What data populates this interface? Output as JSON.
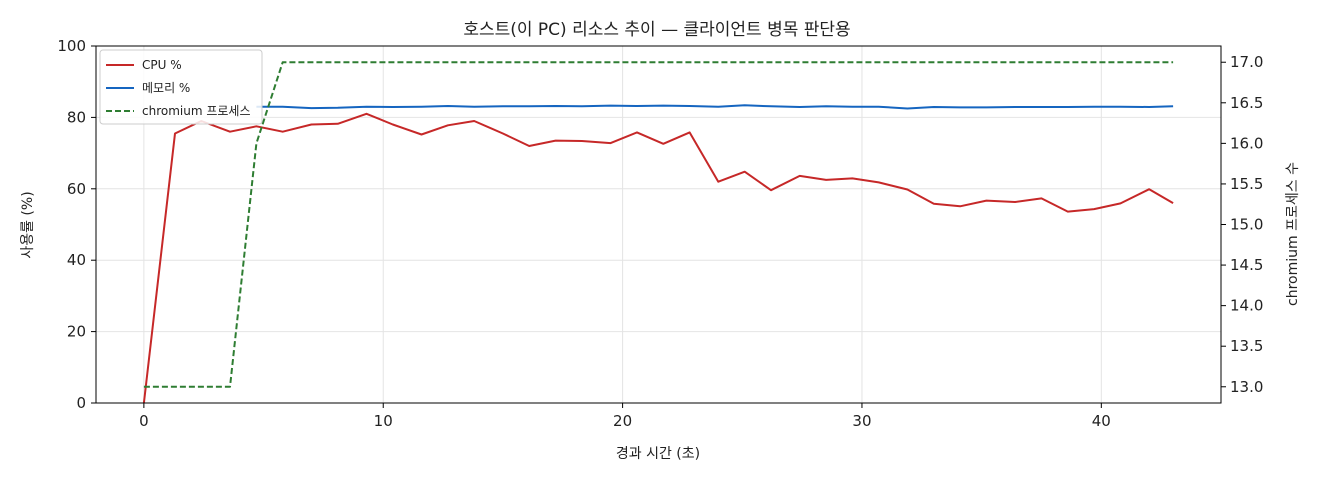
{
  "chart_data": {
    "type": "line",
    "title": "호스트(이 PC) 리소스 추이 — 클라이언트 병목 판단용",
    "xlabel": "경과 시간 (초)",
    "ylabel": "사용률 (%)",
    "ylabel_right": "chromium 프로세스 수",
    "xlim": [
      -2,
      45
    ],
    "ylim": [
      0,
      100
    ],
    "ylim_right": [
      12.8,
      17.2
    ],
    "x_ticks": [
      0,
      10,
      20,
      30,
      40
    ],
    "y_ticks": [
      0,
      20,
      40,
      60,
      80,
      100
    ],
    "y_ticks_right": [
      13.0,
      13.5,
      14.0,
      14.5,
      15.0,
      15.5,
      16.0,
      16.5,
      17.0
    ],
    "y_tick_labels_right": [
      "13.0",
      "13.5",
      "14.0",
      "14.5",
      "15.0",
      "15.5",
      "16.0",
      "16.5",
      "17.0"
    ],
    "grid": true,
    "legend_position": "top-left",
    "x": [
      0,
      1.3,
      2.4,
      3.6,
      4.7,
      5.8,
      7.0,
      8.1,
      9.3,
      10.4,
      11.6,
      12.7,
      13.8,
      15.0,
      16.1,
      17.2,
      18.3,
      19.5,
      20.6,
      21.7,
      22.8,
      24.0,
      25.1,
      26.2,
      27.4,
      28.5,
      29.6,
      30.7,
      31.9,
      33.0,
      34.1,
      35.2,
      36.4,
      37.5,
      38.6,
      39.7,
      40.8,
      42.0,
      43.0
    ],
    "series": [
      {
        "name": "CPU %",
        "axis": "left",
        "color": "#c62828",
        "style": "solid",
        "values": [
          0,
          75.5,
          79,
          76,
          77.5,
          76,
          78,
          78.2,
          81,
          78,
          75.2,
          77.8,
          79,
          75.5,
          72,
          73.5,
          73.4,
          72.8,
          75.8,
          72.6,
          75.8,
          62,
          64.8,
          59.6,
          63.6,
          62.5,
          62.9,
          61.8,
          59.8,
          55.8,
          55.1,
          56.7,
          56.3,
          57.3,
          53.6,
          54.3,
          55.9,
          59.9,
          56
        ]
      },
      {
        "name": "메모리 %",
        "axis": "left",
        "color": "#1565c0",
        "style": "solid",
        "values": [
          null,
          null,
          null,
          null,
          83,
          83,
          82.6,
          82.7,
          83,
          82.9,
          83,
          83.2,
          83,
          83.1,
          83.1,
          83.2,
          83.1,
          83.3,
          83.2,
          83.3,
          83.2,
          83,
          83.4,
          83.1,
          82.9,
          83.1,
          83,
          83,
          82.5,
          82.9,
          82.8,
          82.8,
          82.9,
          82.9,
          82.9,
          83,
          83,
          82.9,
          83.1
        ]
      },
      {
        "name": "chromium 프로세스",
        "axis": "right",
        "color": "#2e7d32",
        "style": "dashed",
        "values": [
          13,
          13,
          13,
          13,
          16,
          17,
          17,
          17,
          17,
          17,
          17,
          17,
          17,
          17,
          17,
          17,
          17,
          17,
          17,
          17,
          17,
          17,
          17,
          17,
          17,
          17,
          17,
          17,
          17,
          17,
          17,
          17,
          17,
          17,
          17,
          17,
          17,
          17,
          17
        ]
      }
    ]
  }
}
